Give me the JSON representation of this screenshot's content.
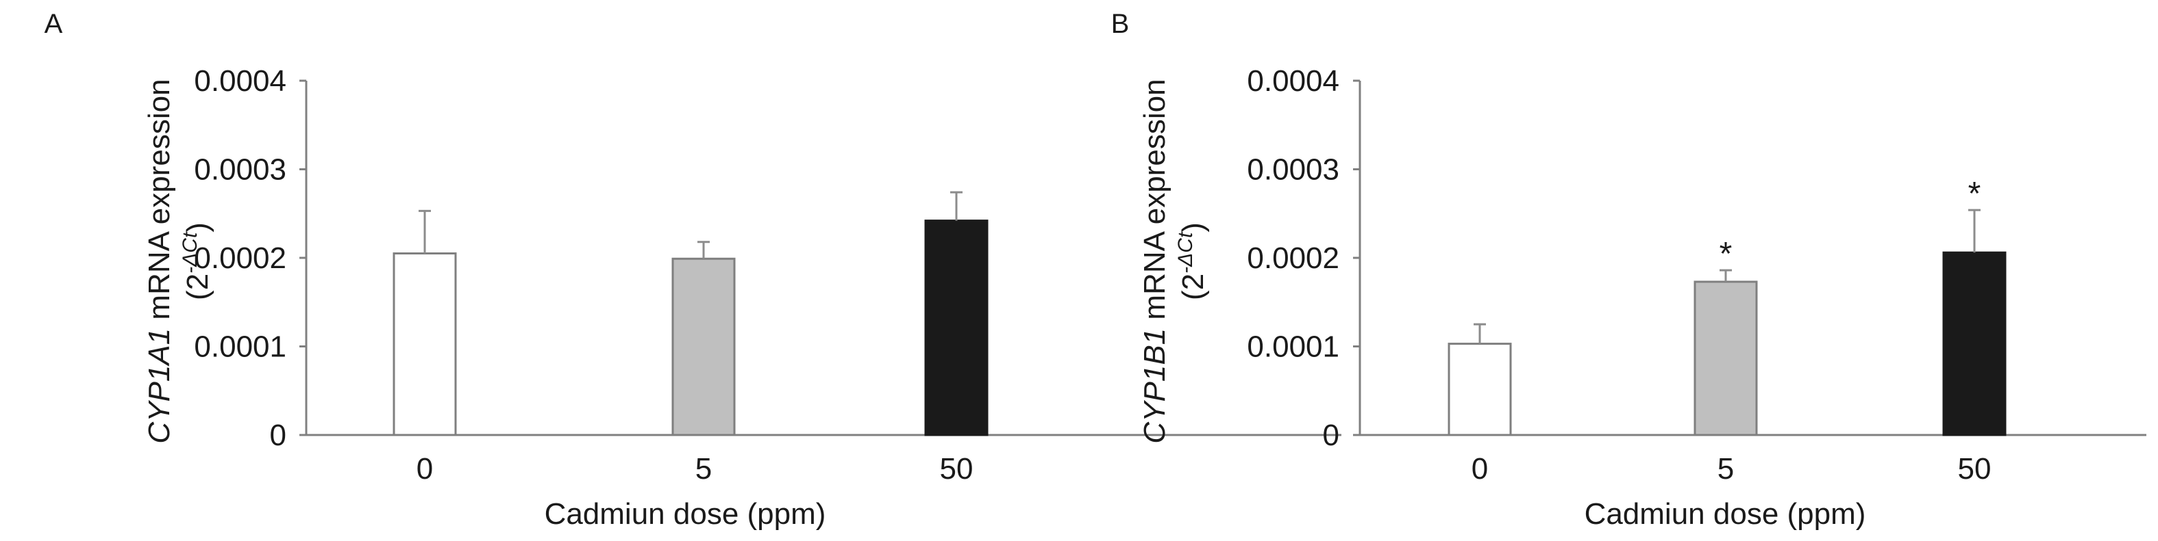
{
  "chart_data": [
    {
      "panel": "A",
      "type": "bar",
      "categories": [
        "0",
        "5",
        "50"
      ],
      "values": [
        0.000205,
        0.000199,
        0.000242
      ],
      "errors": [
        4.8e-05,
        1.9e-05,
        3.2e-05
      ],
      "significance": [
        "",
        "",
        ""
      ],
      "bar_colors": [
        "#ffffff",
        "#bfbfbf",
        "#1a1a1a"
      ],
      "ylabel_gene": "CYP1A1",
      "ylabel_rest": " mRNA expression",
      "ylabel_unit_base": "(2",
      "ylabel_unit_exp": "-ΔCt",
      "ylabel_unit_close": ")",
      "xlabel": "Cadmiun dose (ppm)",
      "ylim": [
        0,
        0.0004
      ],
      "yticks": [
        "0",
        "0.0001",
        "0.0002",
        "0.0003",
        "0.0004"
      ],
      "grid": false
    },
    {
      "panel": "B",
      "type": "bar",
      "categories": [
        "0",
        "5",
        "50"
      ],
      "values": [
        0.000103,
        0.000173,
        0.000206
      ],
      "errors": [
        2.2e-05,
        1.3e-05,
        4.8e-05
      ],
      "significance": [
        "",
        "*",
        "*"
      ],
      "bar_colors": [
        "#ffffff",
        "#bfbfbf",
        "#1a1a1a"
      ],
      "ylabel_gene": "CYP1B1",
      "ylabel_rest": " mRNA expression",
      "ylabel_unit_base": "(2",
      "ylabel_unit_exp": "-ΔCt",
      "ylabel_unit_close": ")",
      "xlabel": "Cadmiun dose (ppm)",
      "ylim": [
        0,
        0.0004
      ],
      "yticks": [
        "0",
        "0.0001",
        "0.0002",
        "0.0003",
        "0.0004"
      ],
      "grid": false
    }
  ]
}
